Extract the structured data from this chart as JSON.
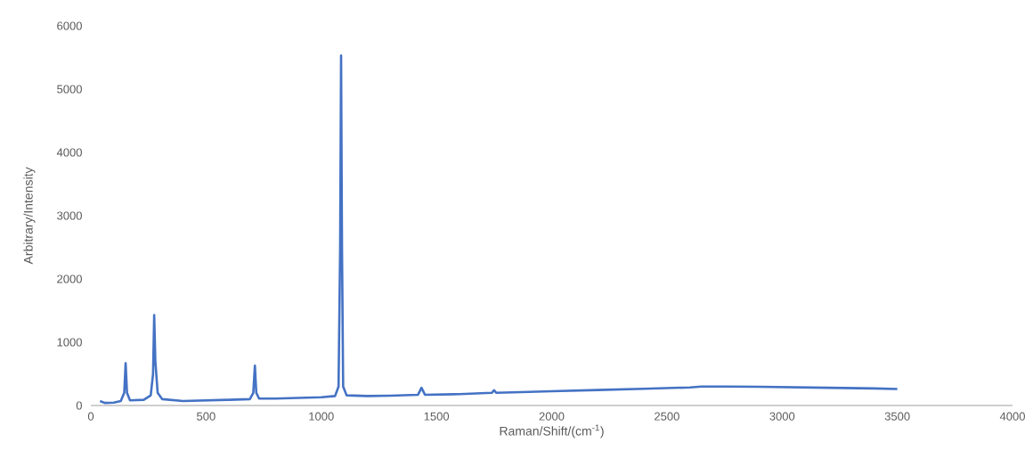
{
  "chart_data": {
    "type": "line",
    "xlabel": "Raman/Shift/(cm$^{-1}$)",
    "ylabel": "Arbitrary/Intensity",
    "x": [
      40,
      60,
      100,
      130,
      145,
      151,
      157,
      170,
      230,
      260,
      270,
      275,
      280,
      290,
      310,
      400,
      500,
      600,
      690,
      705,
      712,
      718,
      730,
      800,
      900,
      1000,
      1060,
      1075,
      1082,
      1086,
      1090,
      1095,
      1110,
      1200,
      1300,
      1420,
      1435,
      1450,
      1600,
      1740,
      1750,
      1760,
      1900,
      2000,
      2200,
      2400,
      2600,
      2650,
      2750,
      2900,
      3000,
      3200,
      3400,
      3500
    ],
    "values": [
      70,
      40,
      45,
      70,
      200,
      670,
      200,
      80,
      90,
      160,
      500,
      1430,
      700,
      200,
      100,
      70,
      80,
      90,
      100,
      200,
      630,
      200,
      110,
      110,
      120,
      130,
      150,
      300,
      2500,
      5530,
      2500,
      300,
      160,
      150,
      155,
      170,
      280,
      170,
      180,
      200,
      240,
      200,
      215,
      225,
      245,
      265,
      285,
      300,
      300,
      295,
      290,
      280,
      270,
      260
    ],
    "color": "#4472c4",
    "xlim": [
      0,
      4000
    ],
    "ylim": [
      0,
      6000
    ],
    "xticks": [
      0,
      500,
      1000,
      1500,
      2000,
      2500,
      3000,
      3500,
      4000
    ],
    "yticks": [
      0,
      1000,
      2000,
      3000,
      4000,
      5000,
      6000
    ]
  }
}
